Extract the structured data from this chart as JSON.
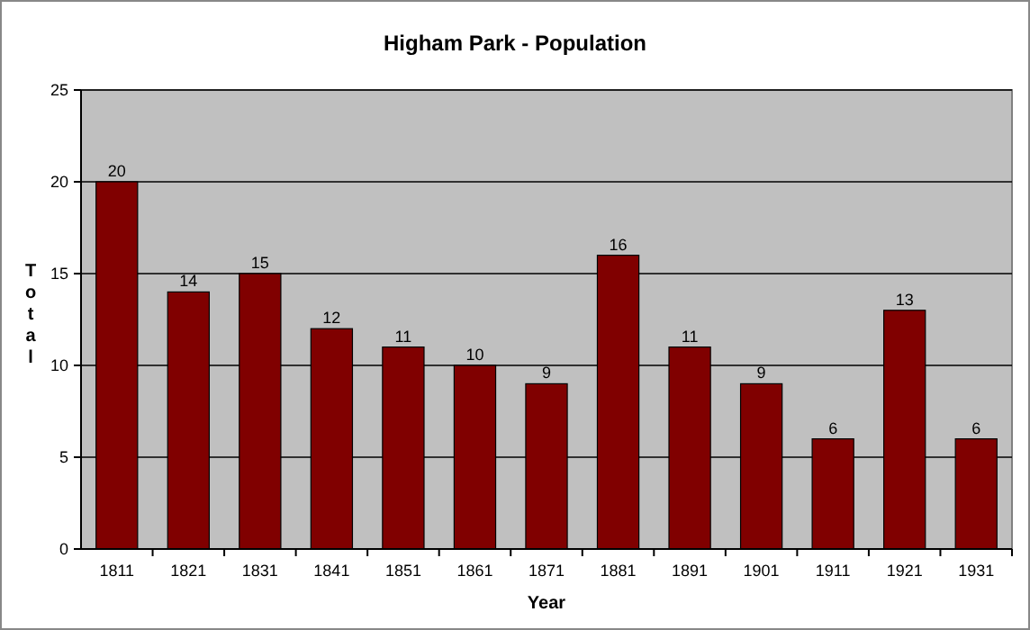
{
  "chart_data": {
    "type": "bar",
    "title": "Higham Park - Population",
    "xlabel": "Year",
    "ylabel": "Total",
    "categories": [
      "1811",
      "1821",
      "1831",
      "1841",
      "1851",
      "1861",
      "1871",
      "1881",
      "1891",
      "1901",
      "1911",
      "1921",
      "1931"
    ],
    "values": [
      20,
      14,
      15,
      12,
      11,
      10,
      9,
      16,
      11,
      9,
      6,
      13,
      6
    ],
    "color": "#800000",
    "ylim": [
      0,
      25
    ],
    "yticks": [
      0,
      5,
      10,
      15,
      20,
      25
    ],
    "grid": "y",
    "data_labels": true
  }
}
